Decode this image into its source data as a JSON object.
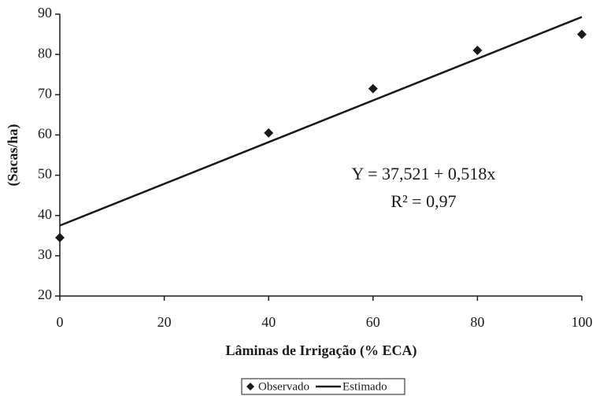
{
  "chart_data": {
    "type": "scatter",
    "xlabel": "Lâminas de Irrigação (% ECA)",
    "ylabel": "(Sacas/ha)",
    "annotations": [
      "Y = 37,521 + 0,518x",
      "R² = 0,97"
    ],
    "xlim": [
      0,
      100
    ],
    "xticks": [
      0,
      20,
      40,
      60,
      80,
      100
    ],
    "ylim": [
      20,
      90
    ],
    "yticks": [
      20,
      30,
      40,
      50,
      60,
      70,
      80,
      90
    ],
    "grid": false,
    "legend": "bottom",
    "series": [
      {
        "name": "Observado",
        "type": "scatter",
        "color": "#1a1a1a",
        "x": [
          0,
          40,
          60,
          80,
          100
        ],
        "values": [
          34.5,
          60.5,
          71.5,
          81,
          85
        ]
      },
      {
        "name": "Estimado",
        "type": "line",
        "color": "#1a1a1a",
        "x": [
          0,
          100
        ],
        "values": [
          37.5,
          89.3
        ]
      }
    ]
  }
}
